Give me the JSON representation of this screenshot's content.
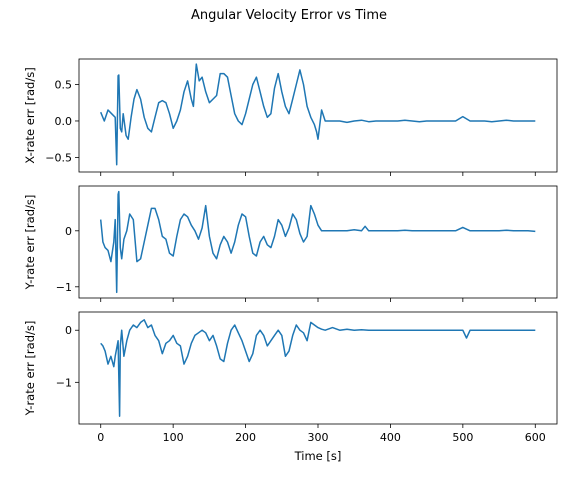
{
  "figure_title": "Angular Velocity Error vs Time",
  "chart_data": [
    {
      "type": "line",
      "title": "",
      "xlabel": "",
      "ylabel": "X-rate err [rad/s]",
      "xlim": [
        -30,
        630
      ],
      "ylim": [
        -0.7,
        0.85
      ],
      "xticks": [
        0,
        100,
        200,
        300,
        400,
        500,
        600
      ],
      "yticks": [
        -0.5,
        0.0,
        0.5
      ],
      "ytick_labels": [
        "−0.5",
        "0.0",
        "0.5"
      ],
      "show_xtick_labels": false,
      "grid": false,
      "series_color": "#1f77b4",
      "series": [
        {
          "x": [
            0,
            5,
            10,
            15,
            20,
            22,
            24,
            25,
            27,
            29,
            31,
            35,
            38,
            42,
            46,
            50,
            55,
            60,
            65,
            70,
            75,
            80,
            85,
            90,
            95,
            100,
            105,
            110,
            115,
            120,
            125,
            128,
            132,
            136,
            140,
            145,
            150,
            155,
            160,
            165,
            170,
            175,
            180,
            185,
            190,
            195,
            200,
            205,
            210,
            215,
            220,
            225,
            230,
            235,
            240,
            245,
            250,
            255,
            260,
            265,
            270,
            275,
            280,
            285,
            290,
            295,
            298,
            300,
            305,
            310,
            320,
            330,
            340,
            350,
            360,
            370,
            380,
            390,
            400,
            410,
            420,
            430,
            440,
            450,
            460,
            470,
            480,
            490,
            500,
            510,
            520,
            530,
            540,
            550,
            560,
            570,
            580,
            590,
            600
          ],
          "y": [
            0.12,
            0.0,
            0.15,
            0.1,
            0.05,
            -0.6,
            0.62,
            0.63,
            -0.1,
            -0.15,
            0.1,
            -0.2,
            -0.25,
            0.05,
            0.3,
            0.43,
            0.3,
            0.05,
            -0.1,
            -0.15,
            0.05,
            0.25,
            0.28,
            0.25,
            0.1,
            -0.1,
            0.0,
            0.15,
            0.4,
            0.55,
            0.3,
            0.2,
            0.78,
            0.55,
            0.6,
            0.4,
            0.25,
            0.3,
            0.35,
            0.65,
            0.65,
            0.6,
            0.35,
            0.1,
            0.0,
            -0.05,
            0.1,
            0.3,
            0.5,
            0.6,
            0.4,
            0.2,
            0.05,
            0.1,
            0.45,
            0.65,
            0.4,
            0.2,
            0.1,
            0.3,
            0.5,
            0.7,
            0.5,
            0.2,
            0.05,
            -0.05,
            -0.15,
            -0.25,
            0.15,
            0.0,
            0.0,
            0.0,
            -0.02,
            0.0,
            0.01,
            -0.01,
            0.0,
            0.0,
            0.0,
            0.0,
            0.01,
            0.0,
            -0.01,
            0.0,
            0.0,
            0.0,
            0.0,
            0.0,
            0.06,
            0.0,
            0.0,
            0.0,
            -0.01,
            0.0,
            0.01,
            0.0,
            0.0,
            0.0,
            0.0
          ]
        }
      ]
    },
    {
      "type": "line",
      "title": "",
      "xlabel": "",
      "ylabel": "Y-rate err [rad/s]",
      "xlim": [
        -30,
        630
      ],
      "ylim": [
        -1.2,
        0.8
      ],
      "xticks": [
        0,
        100,
        200,
        300,
        400,
        500,
        600
      ],
      "yticks": [
        -1,
        0
      ],
      "ytick_labels": [
        "−1",
        "0"
      ],
      "show_xtick_labels": false,
      "grid": false,
      "series_color": "#1f77b4",
      "series": [
        {
          "x": [
            0,
            3,
            6,
            10,
            14,
            18,
            20,
            22,
            24,
            25,
            27,
            29,
            32,
            36,
            40,
            45,
            50,
            55,
            60,
            65,
            70,
            75,
            80,
            85,
            90,
            95,
            100,
            105,
            110,
            115,
            120,
            125,
            130,
            135,
            140,
            145,
            150,
            155,
            160,
            165,
            170,
            175,
            180,
            185,
            190,
            195,
            200,
            205,
            210,
            215,
            220,
            225,
            230,
            235,
            240,
            245,
            250,
            255,
            260,
            265,
            270,
            275,
            280,
            285,
            290,
            295,
            300,
            305,
            310,
            320,
            330,
            340,
            350,
            360,
            365,
            370,
            380,
            390,
            400,
            410,
            420,
            430,
            440,
            450,
            460,
            470,
            480,
            490,
            500,
            510,
            520,
            530,
            540,
            550,
            560,
            570,
            580,
            590,
            600
          ],
          "y": [
            0.2,
            -0.2,
            -0.3,
            -0.35,
            -0.55,
            -0.2,
            0.2,
            -1.1,
            0.65,
            0.7,
            -0.3,
            -0.5,
            -0.15,
            0.0,
            0.3,
            0.2,
            -0.55,
            -0.5,
            -0.2,
            0.1,
            0.4,
            0.4,
            0.2,
            -0.1,
            -0.15,
            -0.4,
            -0.45,
            -0.1,
            0.2,
            0.3,
            0.25,
            0.1,
            0.0,
            -0.15,
            0.05,
            0.45,
            -0.1,
            -0.4,
            -0.5,
            -0.25,
            -0.1,
            -0.2,
            -0.4,
            -0.2,
            0.1,
            0.3,
            0.25,
            -0.1,
            -0.4,
            -0.45,
            -0.2,
            -0.1,
            -0.25,
            -0.3,
            -0.1,
            0.2,
            0.1,
            -0.1,
            0.05,
            0.3,
            0.2,
            -0.05,
            -0.2,
            -0.1,
            0.45,
            0.3,
            0.1,
            0.0,
            0.0,
            0.0,
            0.0,
            0.0,
            0.02,
            0.0,
            0.08,
            0.0,
            0.0,
            0.0,
            0.0,
            0.0,
            0.01,
            0.0,
            0.0,
            0.0,
            0.0,
            0.0,
            0.0,
            0.0,
            0.06,
            0.0,
            0.0,
            0.0,
            0.0,
            0.0,
            0.01,
            0.0,
            0.0,
            0.0,
            -0.01
          ]
        }
      ]
    },
    {
      "type": "line",
      "title": "",
      "xlabel": "Time [s]",
      "ylabel": "Y-rate err [rad/s]",
      "xlim": [
        -30,
        630
      ],
      "ylim": [
        -1.8,
        0.35
      ],
      "xticks": [
        0,
        100,
        200,
        300,
        400,
        500,
        600
      ],
      "xtick_labels": [
        "0",
        "100",
        "200",
        "300",
        "400",
        "500",
        "600"
      ],
      "yticks": [
        -1,
        0
      ],
      "ytick_labels": [
        "−1",
        "0"
      ],
      "show_xtick_labels": true,
      "grid": false,
      "series_color": "#1f77b4",
      "series": [
        {
          "x": [
            0,
            3,
            6,
            10,
            14,
            18,
            20,
            24,
            26,
            27,
            29,
            32,
            36,
            40,
            45,
            50,
            55,
            60,
            65,
            70,
            75,
            80,
            85,
            90,
            95,
            100,
            105,
            110,
            115,
            120,
            125,
            130,
            135,
            140,
            145,
            150,
            155,
            160,
            165,
            170,
            175,
            180,
            185,
            190,
            195,
            200,
            205,
            210,
            215,
            220,
            225,
            230,
            235,
            240,
            245,
            250,
            255,
            260,
            265,
            270,
            275,
            280,
            285,
            290,
            295,
            300,
            305,
            310,
            320,
            330,
            340,
            350,
            360,
            370,
            380,
            390,
            400,
            410,
            420,
            430,
            440,
            450,
            460,
            470,
            480,
            490,
            500,
            505,
            510,
            520,
            530,
            540,
            550,
            560,
            570,
            580,
            590,
            600
          ],
          "y": [
            -0.25,
            -0.3,
            -0.4,
            -0.65,
            -0.5,
            -0.7,
            -0.5,
            -0.2,
            -1.65,
            -0.3,
            0.0,
            -0.5,
            -0.2,
            0.0,
            0.1,
            0.05,
            0.15,
            0.2,
            0.05,
            0.1,
            -0.1,
            -0.2,
            -0.45,
            -0.25,
            -0.2,
            -0.1,
            -0.25,
            -0.3,
            -0.65,
            -0.5,
            -0.25,
            -0.1,
            -0.05,
            0.0,
            -0.05,
            -0.2,
            -0.1,
            -0.3,
            -0.55,
            -0.6,
            -0.25,
            0.0,
            0.1,
            -0.05,
            -0.2,
            -0.4,
            -0.6,
            -0.45,
            -0.1,
            0.0,
            -0.1,
            -0.3,
            -0.2,
            -0.1,
            0.0,
            -0.1,
            -0.5,
            -0.4,
            -0.1,
            0.1,
            0.0,
            -0.05,
            -0.2,
            0.15,
            0.1,
            0.05,
            0.02,
            0.0,
            0.05,
            0.0,
            0.02,
            0.0,
            0.01,
            0.0,
            0.0,
            0.0,
            0.0,
            0.0,
            0.0,
            0.0,
            0.0,
            0.0,
            0.0,
            0.0,
            0.0,
            0.0,
            0.0,
            -0.15,
            0.0,
            0.0,
            0.0,
            0.0,
            0.0,
            0.0,
            0.0,
            0.0,
            0.0,
            0.0
          ]
        }
      ]
    }
  ]
}
